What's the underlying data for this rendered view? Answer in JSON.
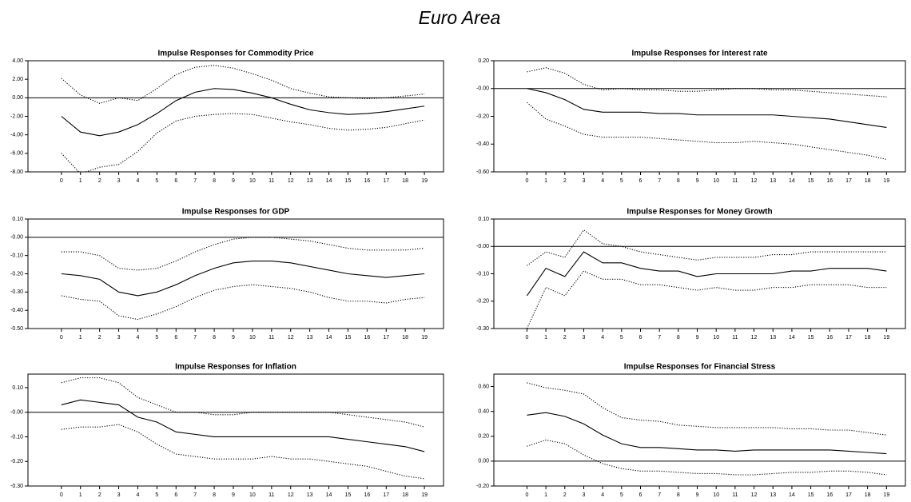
{
  "title": "Euro Area",
  "chart_data": [
    {
      "type": "line",
      "title": "Impulse Responses for Commodity Price",
      "x": [
        0,
        1,
        2,
        3,
        4,
        5,
        6,
        7,
        8,
        9,
        10,
        11,
        12,
        13,
        14,
        15,
        16,
        17,
        18,
        19
      ],
      "xlim": [
        -1.75,
        20
      ],
      "xticks": [
        0,
        1,
        2,
        3,
        4,
        5,
        6,
        7,
        8,
        9,
        10,
        11,
        12,
        13,
        14,
        15,
        16,
        17,
        18,
        19
      ],
      "ylim": [
        -8,
        4
      ],
      "yticks": [
        {
          "value": 4,
          "label": "4.00"
        },
        {
          "value": 2,
          "label": "2.00"
        },
        {
          "value": 0,
          "label": "0.00"
        },
        {
          "value": -2,
          "label": "-2.00"
        },
        {
          "value": -4,
          "label": "-4.00"
        },
        {
          "value": -6,
          "label": "-6.00"
        },
        {
          "value": -8,
          "label": "-8.00"
        }
      ],
      "series": [
        {
          "color": "#000000",
          "line_style": "solid",
          "values": [
            -2.0,
            -3.7,
            -4.1,
            -3.7,
            -2.9,
            -1.7,
            -0.3,
            0.6,
            1.0,
            0.9,
            0.5,
            0.0,
            -0.7,
            -1.3,
            -1.6,
            -1.8,
            -1.7,
            -1.5,
            -1.2,
            -0.9
          ]
        },
        {
          "color": "#000000",
          "line_style": "dotted",
          "values": [
            2.1,
            0.3,
            -0.6,
            0.0,
            -0.3,
            1.0,
            2.5,
            3.3,
            3.5,
            3.2,
            2.6,
            1.9,
            1.0,
            0.5,
            0.1,
            0.0,
            -0.1,
            0.0,
            0.2,
            0.4
          ]
        },
        {
          "color": "#000000",
          "line_style": "dotted",
          "values": [
            -6.0,
            -8.2,
            -7.5,
            -7.2,
            -5.8,
            -3.8,
            -2.5,
            -2.0,
            -1.8,
            -1.7,
            -1.8,
            -2.2,
            -2.6,
            -2.9,
            -3.3,
            -3.5,
            -3.4,
            -3.2,
            -2.8,
            -2.4
          ]
        }
      ]
    },
    {
      "type": "line",
      "title": "Impulse Responses for Interest rate",
      "x": [
        0,
        1,
        2,
        3,
        4,
        5,
        6,
        7,
        8,
        9,
        10,
        11,
        12,
        13,
        14,
        15,
        16,
        17,
        18,
        19
      ],
      "xlim": [
        -1.75,
        20
      ],
      "xticks": [
        0,
        1,
        2,
        3,
        4,
        5,
        6,
        7,
        8,
        9,
        10,
        11,
        12,
        13,
        14,
        15,
        16,
        17,
        18,
        19
      ],
      "ylim": [
        -0.6,
        0.2
      ],
      "yticks": [
        {
          "value": 0.2,
          "label": "0.20"
        },
        {
          "value": 0,
          "label": "-0.00"
        },
        {
          "value": -0.2,
          "label": "-0.20"
        },
        {
          "value": -0.4,
          "label": "-0.40"
        },
        {
          "value": -0.6,
          "label": "-0.60"
        }
      ],
      "series": [
        {
          "color": "#000000",
          "line_style": "solid",
          "values": [
            0.0,
            -0.03,
            -0.08,
            -0.15,
            -0.17,
            -0.17,
            -0.17,
            -0.18,
            -0.18,
            -0.19,
            -0.19,
            -0.19,
            -0.19,
            -0.19,
            -0.2,
            -0.21,
            -0.22,
            -0.24,
            -0.26,
            -0.28
          ]
        },
        {
          "color": "#000000",
          "line_style": "dotted",
          "values": [
            0.12,
            0.15,
            0.11,
            0.03,
            -0.01,
            0.0,
            -0.01,
            -0.01,
            -0.02,
            -0.02,
            -0.01,
            0.0,
            0.0,
            -0.01,
            -0.01,
            -0.02,
            -0.03,
            -0.04,
            -0.05,
            -0.06
          ]
        },
        {
          "color": "#000000",
          "line_style": "dotted",
          "values": [
            -0.1,
            -0.22,
            -0.27,
            -0.33,
            -0.35,
            -0.35,
            -0.35,
            -0.36,
            -0.37,
            -0.38,
            -0.39,
            -0.39,
            -0.38,
            -0.39,
            -0.4,
            -0.42,
            -0.44,
            -0.46,
            -0.48,
            -0.51
          ]
        }
      ]
    },
    {
      "type": "line",
      "title": "Impulse Responses for GDP",
      "x": [
        0,
        1,
        2,
        3,
        4,
        5,
        6,
        7,
        8,
        9,
        10,
        11,
        12,
        13,
        14,
        15,
        16,
        17,
        18,
        19
      ],
      "xlim": [
        -1.75,
        20
      ],
      "xticks": [
        0,
        1,
        2,
        3,
        4,
        5,
        6,
        7,
        8,
        9,
        10,
        11,
        12,
        13,
        14,
        15,
        16,
        17,
        18,
        19
      ],
      "ylim": [
        -0.5,
        0.1
      ],
      "yticks": [
        {
          "value": 0.1,
          "label": "0.10"
        },
        {
          "value": 0,
          "label": "-0.00"
        },
        {
          "value": -0.1,
          "label": "-0.10"
        },
        {
          "value": -0.2,
          "label": "-0.20"
        },
        {
          "value": -0.3,
          "label": "-0.30"
        },
        {
          "value": -0.4,
          "label": "-0.40"
        },
        {
          "value": -0.5,
          "label": "-0.50"
        }
      ],
      "series": [
        {
          "color": "#000000",
          "line_style": "solid",
          "values": [
            -0.2,
            -0.21,
            -0.23,
            -0.3,
            -0.32,
            -0.3,
            -0.26,
            -0.21,
            -0.17,
            -0.14,
            -0.13,
            -0.13,
            -0.14,
            -0.16,
            -0.18,
            -0.2,
            -0.21,
            -0.22,
            -0.21,
            -0.2
          ]
        },
        {
          "color": "#000000",
          "line_style": "dotted",
          "values": [
            -0.08,
            -0.08,
            -0.1,
            -0.17,
            -0.18,
            -0.17,
            -0.13,
            -0.08,
            -0.04,
            -0.01,
            0.0,
            0.0,
            -0.01,
            -0.02,
            -0.04,
            -0.06,
            -0.07,
            -0.07,
            -0.07,
            -0.06
          ]
        },
        {
          "color": "#000000",
          "line_style": "dotted",
          "values": [
            -0.32,
            -0.34,
            -0.35,
            -0.43,
            -0.45,
            -0.42,
            -0.38,
            -0.33,
            -0.29,
            -0.27,
            -0.26,
            -0.27,
            -0.28,
            -0.3,
            -0.33,
            -0.35,
            -0.35,
            -0.36,
            -0.34,
            -0.33
          ]
        }
      ]
    },
    {
      "type": "line",
      "title": "Impulse Responses for Money Growth",
      "x": [
        0,
        1,
        2,
        3,
        4,
        5,
        6,
        7,
        8,
        9,
        10,
        11,
        12,
        13,
        14,
        15,
        16,
        17,
        18,
        19
      ],
      "xlim": [
        -1.75,
        20
      ],
      "xticks": [
        0,
        1,
        2,
        3,
        4,
        5,
        6,
        7,
        8,
        9,
        10,
        11,
        12,
        13,
        14,
        15,
        16,
        17,
        18,
        19
      ],
      "ylim": [
        -0.3,
        0.1
      ],
      "yticks": [
        {
          "value": 0.1,
          "label": "0.10"
        },
        {
          "value": 0,
          "label": "-0.00"
        },
        {
          "value": -0.1,
          "label": "-0.10"
        },
        {
          "value": -0.2,
          "label": "-0.20"
        },
        {
          "value": -0.3,
          "label": "-0.30"
        }
      ],
      "series": [
        {
          "color": "#000000",
          "line_style": "solid",
          "values": [
            -0.18,
            -0.08,
            -0.11,
            -0.02,
            -0.06,
            -0.06,
            -0.08,
            -0.09,
            -0.09,
            -0.11,
            -0.1,
            -0.1,
            -0.1,
            -0.1,
            -0.09,
            -0.09,
            -0.08,
            -0.08,
            -0.08,
            -0.09
          ]
        },
        {
          "color": "#000000",
          "line_style": "dotted",
          "values": [
            -0.07,
            -0.02,
            -0.04,
            0.06,
            0.01,
            0.0,
            -0.02,
            -0.03,
            -0.04,
            -0.05,
            -0.04,
            -0.04,
            -0.04,
            -0.03,
            -0.03,
            -0.02,
            -0.02,
            -0.02,
            -0.02,
            -0.02
          ]
        },
        {
          "color": "#000000",
          "line_style": "dotted",
          "values": [
            -0.3,
            -0.15,
            -0.18,
            -0.09,
            -0.12,
            -0.12,
            -0.14,
            -0.14,
            -0.15,
            -0.16,
            -0.15,
            -0.16,
            -0.16,
            -0.15,
            -0.15,
            -0.14,
            -0.14,
            -0.14,
            -0.15,
            -0.15
          ]
        }
      ]
    },
    {
      "type": "line",
      "title": "Impulse Responses for Inflation",
      "x": [
        0,
        1,
        2,
        3,
        4,
        5,
        6,
        7,
        8,
        9,
        10,
        11,
        12,
        13,
        14,
        15,
        16,
        17,
        18,
        19
      ],
      "xlim": [
        -1.75,
        20
      ],
      "xticks": [
        0,
        1,
        2,
        3,
        4,
        5,
        6,
        7,
        8,
        9,
        10,
        11,
        12,
        13,
        14,
        15,
        16,
        17,
        18,
        19
      ],
      "ylim": [
        -0.3,
        0.155
      ],
      "yticks": [
        {
          "value": 0.1,
          "label": "0.10"
        },
        {
          "value": 0,
          "label": "-0.00"
        },
        {
          "value": -0.1,
          "label": "-0.10"
        },
        {
          "value": -0.2,
          "label": "-0.20"
        },
        {
          "value": -0.3,
          "label": "-0.30"
        }
      ],
      "series": [
        {
          "color": "#000000",
          "line_style": "solid",
          "values": [
            0.03,
            0.05,
            0.04,
            0.03,
            -0.02,
            -0.04,
            -0.08,
            -0.09,
            -0.1,
            -0.1,
            -0.1,
            -0.1,
            -0.1,
            -0.1,
            -0.1,
            -0.11,
            -0.12,
            -0.13,
            -0.14,
            -0.16
          ]
        },
        {
          "color": "#000000",
          "line_style": "dotted",
          "values": [
            0.12,
            0.14,
            0.14,
            0.12,
            0.06,
            0.03,
            0.0,
            0.0,
            -0.01,
            -0.01,
            0.0,
            0.0,
            0.0,
            0.0,
            0.0,
            -0.01,
            -0.02,
            -0.03,
            -0.04,
            -0.06
          ]
        },
        {
          "color": "#000000",
          "line_style": "dotted",
          "values": [
            -0.07,
            -0.06,
            -0.06,
            -0.05,
            -0.08,
            -0.13,
            -0.17,
            -0.18,
            -0.19,
            -0.19,
            -0.19,
            -0.18,
            -0.19,
            -0.19,
            -0.2,
            -0.21,
            -0.22,
            -0.24,
            -0.26,
            -0.27
          ]
        }
      ]
    },
    {
      "type": "line",
      "title": "Impulse Responses for Financial Stress",
      "x": [
        0,
        1,
        2,
        3,
        4,
        5,
        6,
        7,
        8,
        9,
        10,
        11,
        12,
        13,
        14,
        15,
        16,
        17,
        18,
        19
      ],
      "xlim": [
        -1.75,
        20
      ],
      "xticks": [
        0,
        1,
        2,
        3,
        4,
        5,
        6,
        7,
        8,
        9,
        10,
        11,
        12,
        13,
        14,
        15,
        16,
        17,
        18,
        19
      ],
      "ylim": [
        -0.2,
        0.7
      ],
      "yticks": [
        {
          "value": 0.6,
          "label": "0.60"
        },
        {
          "value": 0.4,
          "label": "0.40"
        },
        {
          "value": 0.2,
          "label": "0.20"
        },
        {
          "value": 0,
          "label": "0.00"
        },
        {
          "value": -0.2,
          "label": "-0.20"
        }
      ],
      "series": [
        {
          "color": "#000000",
          "line_style": "solid",
          "values": [
            0.37,
            0.39,
            0.36,
            0.3,
            0.21,
            0.14,
            0.11,
            0.11,
            0.1,
            0.09,
            0.09,
            0.08,
            0.09,
            0.09,
            0.09,
            0.09,
            0.09,
            0.08,
            0.07,
            0.06
          ]
        },
        {
          "color": "#000000",
          "line_style": "dotted",
          "values": [
            0.63,
            0.59,
            0.57,
            0.54,
            0.43,
            0.35,
            0.33,
            0.32,
            0.29,
            0.28,
            0.27,
            0.27,
            0.27,
            0.27,
            0.26,
            0.26,
            0.25,
            0.25,
            0.23,
            0.21
          ]
        },
        {
          "color": "#000000",
          "line_style": "dotted",
          "values": [
            0.12,
            0.17,
            0.14,
            0.05,
            -0.02,
            -0.06,
            -0.08,
            -0.08,
            -0.09,
            -0.1,
            -0.1,
            -0.11,
            -0.11,
            -0.1,
            -0.09,
            -0.09,
            -0.08,
            -0.08,
            -0.09,
            -0.11
          ]
        }
      ]
    }
  ]
}
